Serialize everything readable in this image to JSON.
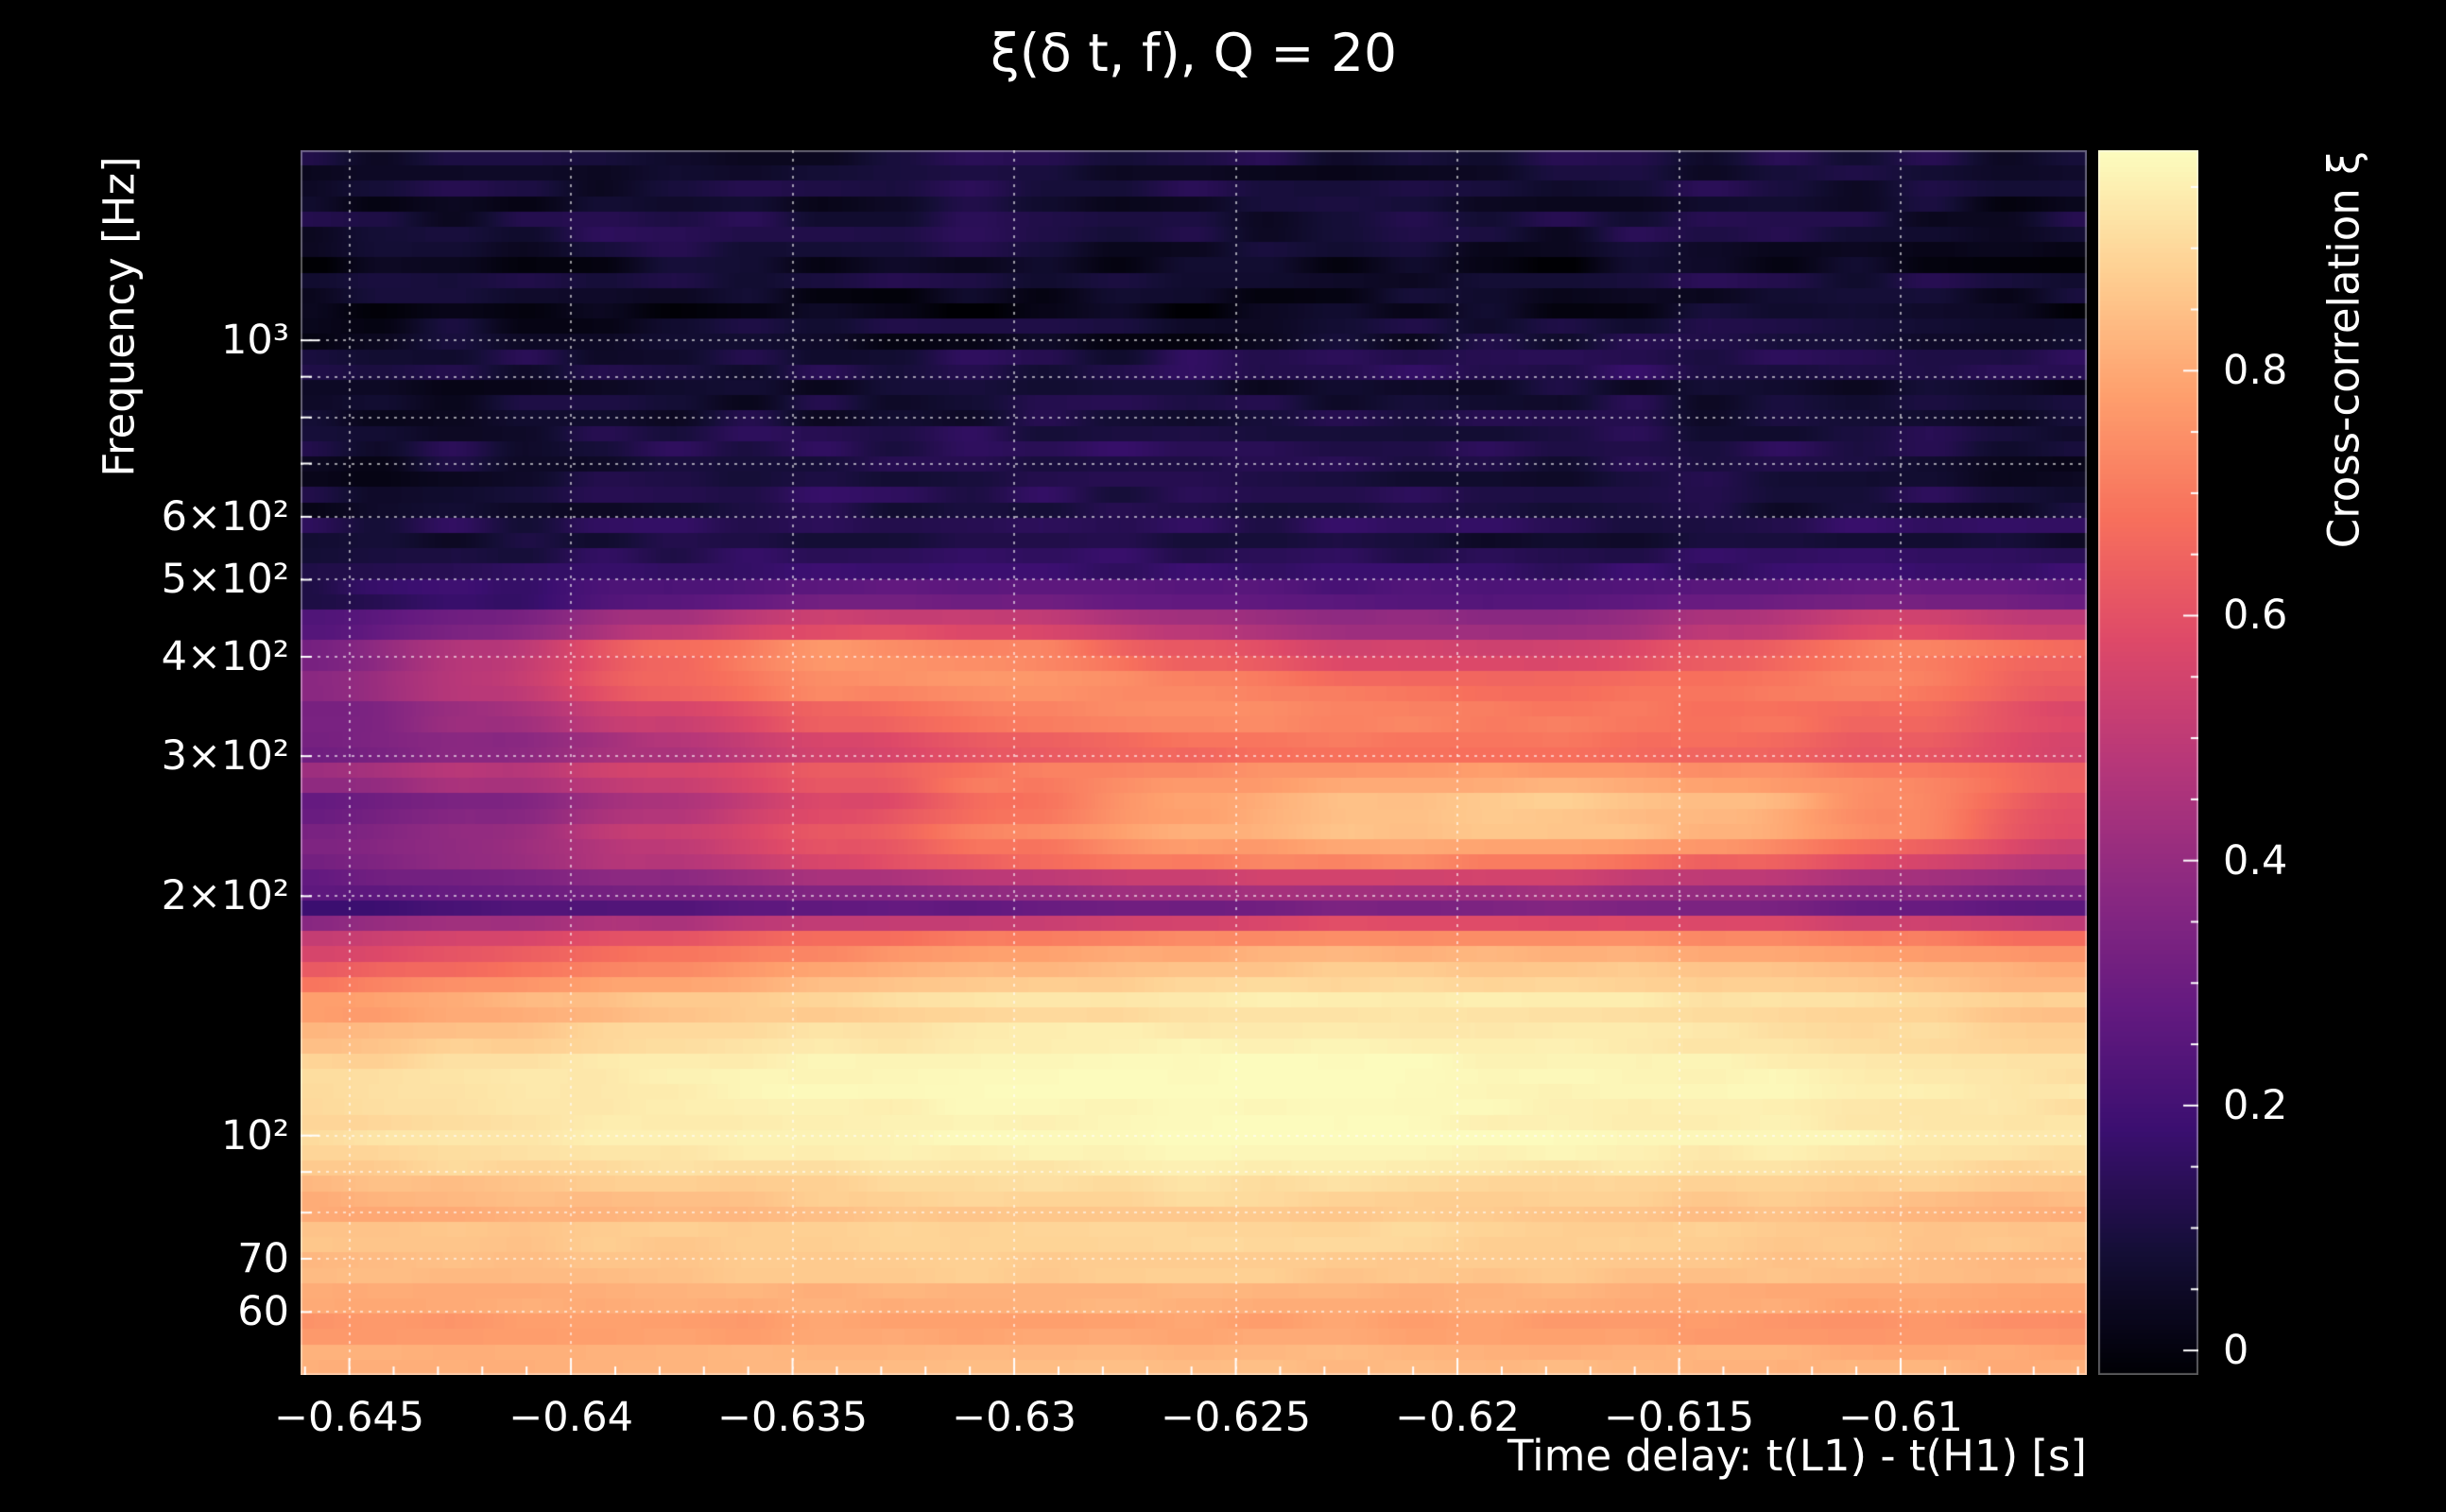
{
  "colors": {
    "background": "#000000",
    "text": "#ffffff",
    "grid": "rgba(255,255,255,0.6)"
  },
  "chart_data": {
    "type": "heatmap",
    "title": "ξ(δ t, f), Q = 20",
    "xlabel": "Time delay: t(L1) - t(H1) [s]",
    "ylabel": "Frequency [Hz]",
    "colorbar_label": "Cross-correlation ξ",
    "x_range": [
      -0.6461,
      -0.6058
    ],
    "y_range": [
      50,
      1734
    ],
    "y_scale": "log",
    "value_range": [
      -0.02,
      0.98
    ],
    "x_ticks": [
      {
        "value": -0.645,
        "label": "−0.645"
      },
      {
        "value": -0.64,
        "label": "−0.64"
      },
      {
        "value": -0.635,
        "label": "−0.635"
      },
      {
        "value": -0.63,
        "label": "−0.63"
      },
      {
        "value": -0.625,
        "label": "−0.625"
      },
      {
        "value": -0.62,
        "label": "−0.62"
      },
      {
        "value": -0.615,
        "label": "−0.615"
      },
      {
        "value": -0.61,
        "label": "−0.61"
      }
    ],
    "y_ticks": [
      {
        "value": 1000,
        "label": "10³"
      },
      {
        "value": 600,
        "label": "6×10²"
      },
      {
        "value": 500,
        "label": "5×10²"
      },
      {
        "value": 400,
        "label": "4×10²"
      },
      {
        "value": 300,
        "label": "3×10²"
      },
      {
        "value": 200,
        "label": "2×10²"
      },
      {
        "value": 100,
        "label": "10²"
      },
      {
        "value": 70,
        "label": "70"
      },
      {
        "value": 60,
        "label": "60"
      }
    ],
    "colorbar_ticks": [
      {
        "value": 0.8,
        "label": "0.8"
      },
      {
        "value": 0.6,
        "label": "0.6"
      },
      {
        "value": 0.4,
        "label": "0.4"
      },
      {
        "value": 0.2,
        "label": "0.2"
      },
      {
        "value": 0.0,
        "label": "0"
      }
    ],
    "grid_x": [
      -0.645,
      -0.64,
      -0.635,
      -0.63,
      -0.625,
      -0.62,
      -0.615,
      -0.61
    ],
    "grid_y": [
      60,
      70,
      80,
      90,
      100,
      200,
      300,
      400,
      500,
      600,
      700,
      800,
      900,
      1000
    ],
    "colormap": {
      "name": "magma",
      "stops": [
        [
          0.0,
          "#000004"
        ],
        [
          0.1,
          "#140e36"
        ],
        [
          0.2,
          "#3b0f70"
        ],
        [
          0.3,
          "#641a80"
        ],
        [
          0.4,
          "#8c2981"
        ],
        [
          0.5,
          "#b73779"
        ],
        [
          0.6,
          "#de4968"
        ],
        [
          0.7,
          "#f7705c"
        ],
        [
          0.8,
          "#fe9f6d"
        ],
        [
          0.9,
          "#fecf92"
        ],
        [
          1.0,
          "#fcfdbf"
        ]
      ]
    },
    "x": [
      -0.646,
      -0.642,
      -0.638,
      -0.634,
      -0.63,
      -0.626,
      -0.622,
      -0.618,
      -0.614,
      -0.61,
      -0.606
    ],
    "freqs": [
      52,
      57,
      62,
      68,
      75,
      82,
      92,
      103,
      115,
      130,
      148,
      165,
      180,
      192,
      205,
      220,
      240,
      262,
      285,
      310,
      340,
      370,
      405,
      440,
      475,
      520,
      570,
      640,
      720,
      810,
      900,
      1000,
      1150,
      1300,
      1500,
      1700
    ],
    "values": [
      [
        0.84,
        0.84,
        0.85,
        0.85,
        0.86,
        0.86,
        0.86,
        0.85,
        0.85,
        0.84,
        0.83
      ],
      [
        0.74,
        0.75,
        0.76,
        0.77,
        0.77,
        0.77,
        0.77,
        0.76,
        0.75,
        0.74,
        0.73
      ],
      [
        0.78,
        0.79,
        0.8,
        0.8,
        0.81,
        0.81,
        0.8,
        0.8,
        0.79,
        0.78,
        0.77
      ],
      [
        0.84,
        0.85,
        0.86,
        0.87,
        0.88,
        0.88,
        0.87,
        0.87,
        0.86,
        0.85,
        0.84
      ],
      [
        0.87,
        0.88,
        0.89,
        0.9,
        0.91,
        0.91,
        0.91,
        0.9,
        0.89,
        0.88,
        0.87
      ],
      [
        0.8,
        0.82,
        0.84,
        0.86,
        0.88,
        0.89,
        0.88,
        0.87,
        0.86,
        0.84,
        0.82
      ],
      [
        0.88,
        0.9,
        0.92,
        0.93,
        0.94,
        0.95,
        0.95,
        0.94,
        0.93,
        0.92,
        0.9
      ],
      [
        0.9,
        0.92,
        0.94,
        0.95,
        0.96,
        0.97,
        0.97,
        0.96,
        0.95,
        0.94,
        0.92
      ],
      [
        0.9,
        0.92,
        0.94,
        0.96,
        0.97,
        0.97,
        0.97,
        0.96,
        0.96,
        0.94,
        0.92
      ],
      [
        0.86,
        0.89,
        0.92,
        0.94,
        0.95,
        0.96,
        0.96,
        0.95,
        0.94,
        0.92,
        0.9
      ],
      [
        0.76,
        0.8,
        0.85,
        0.88,
        0.91,
        0.92,
        0.93,
        0.92,
        0.91,
        0.89,
        0.86
      ],
      [
        0.6,
        0.66,
        0.72,
        0.78,
        0.82,
        0.85,
        0.86,
        0.86,
        0.85,
        0.83,
        0.79
      ],
      [
        0.5,
        0.55,
        0.6,
        0.65,
        0.69,
        0.72,
        0.74,
        0.74,
        0.72,
        0.69,
        0.65
      ],
      [
        0.18,
        0.2,
        0.22,
        0.25,
        0.27,
        0.3,
        0.32,
        0.33,
        0.32,
        0.28,
        0.25
      ],
      [
        0.28,
        0.31,
        0.34,
        0.38,
        0.42,
        0.45,
        0.46,
        0.45,
        0.42,
        0.38,
        0.34
      ],
      [
        0.32,
        0.38,
        0.47,
        0.56,
        0.64,
        0.7,
        0.72,
        0.7,
        0.64,
        0.56,
        0.48
      ],
      [
        0.35,
        0.42,
        0.53,
        0.64,
        0.74,
        0.82,
        0.87,
        0.88,
        0.84,
        0.74,
        0.6
      ],
      [
        0.3,
        0.36,
        0.46,
        0.58,
        0.7,
        0.8,
        0.87,
        0.89,
        0.86,
        0.76,
        0.62
      ],
      [
        0.42,
        0.48,
        0.55,
        0.62,
        0.7,
        0.74,
        0.76,
        0.77,
        0.75,
        0.71,
        0.64
      ],
      [
        0.3,
        0.35,
        0.44,
        0.54,
        0.62,
        0.66,
        0.68,
        0.67,
        0.65,
        0.61,
        0.55
      ],
      [
        0.32,
        0.42,
        0.55,
        0.65,
        0.72,
        0.74,
        0.72,
        0.7,
        0.69,
        0.66,
        0.58
      ],
      [
        0.38,
        0.5,
        0.65,
        0.74,
        0.76,
        0.73,
        0.68,
        0.66,
        0.69,
        0.72,
        0.62
      ],
      [
        0.32,
        0.48,
        0.66,
        0.76,
        0.73,
        0.62,
        0.55,
        0.53,
        0.62,
        0.72,
        0.66
      ],
      [
        0.22,
        0.32,
        0.46,
        0.56,
        0.53,
        0.45,
        0.4,
        0.38,
        0.46,
        0.56,
        0.5
      ],
      [
        0.14,
        0.18,
        0.25,
        0.3,
        0.3,
        0.28,
        0.25,
        0.25,
        0.28,
        0.33,
        0.3
      ],
      [
        0.1,
        0.12,
        0.15,
        0.18,
        0.18,
        0.16,
        0.15,
        0.15,
        0.16,
        0.18,
        0.16
      ],
      [
        0.08,
        0.09,
        0.11,
        0.12,
        0.12,
        0.11,
        0.1,
        0.1,
        0.11,
        0.12,
        0.1
      ],
      [
        0.06,
        0.07,
        0.09,
        0.11,
        0.1,
        0.09,
        0.08,
        0.08,
        0.09,
        0.08,
        0.07
      ],
      [
        0.05,
        0.06,
        0.08,
        0.1,
        0.12,
        0.12,
        0.1,
        0.09,
        0.08,
        0.07,
        0.06
      ],
      [
        0.05,
        0.05,
        0.06,
        0.07,
        0.08,
        0.08,
        0.08,
        0.07,
        0.07,
        0.06,
        0.05
      ],
      [
        0.04,
        0.05,
        0.06,
        0.06,
        0.07,
        0.08,
        0.1,
        0.12,
        0.1,
        0.08,
        0.06
      ],
      [
        0.05,
        0.05,
        0.05,
        0.06,
        0.06,
        0.06,
        0.08,
        0.1,
        0.1,
        0.08,
        0.06
      ],
      [
        0.06,
        0.07,
        0.06,
        0.06,
        0.05,
        0.06,
        0.06,
        0.07,
        0.08,
        0.07,
        0.06
      ],
      [
        0.05,
        0.06,
        0.08,
        0.08,
        0.07,
        0.06,
        0.05,
        0.05,
        0.06,
        0.06,
        0.05
      ],
      [
        0.04,
        0.05,
        0.06,
        0.07,
        0.08,
        0.07,
        0.06,
        0.06,
        0.07,
        0.06,
        0.05
      ],
      [
        0.06,
        0.06,
        0.05,
        0.05,
        0.06,
        0.06,
        0.05,
        0.06,
        0.07,
        0.06,
        0.05
      ]
    ]
  }
}
